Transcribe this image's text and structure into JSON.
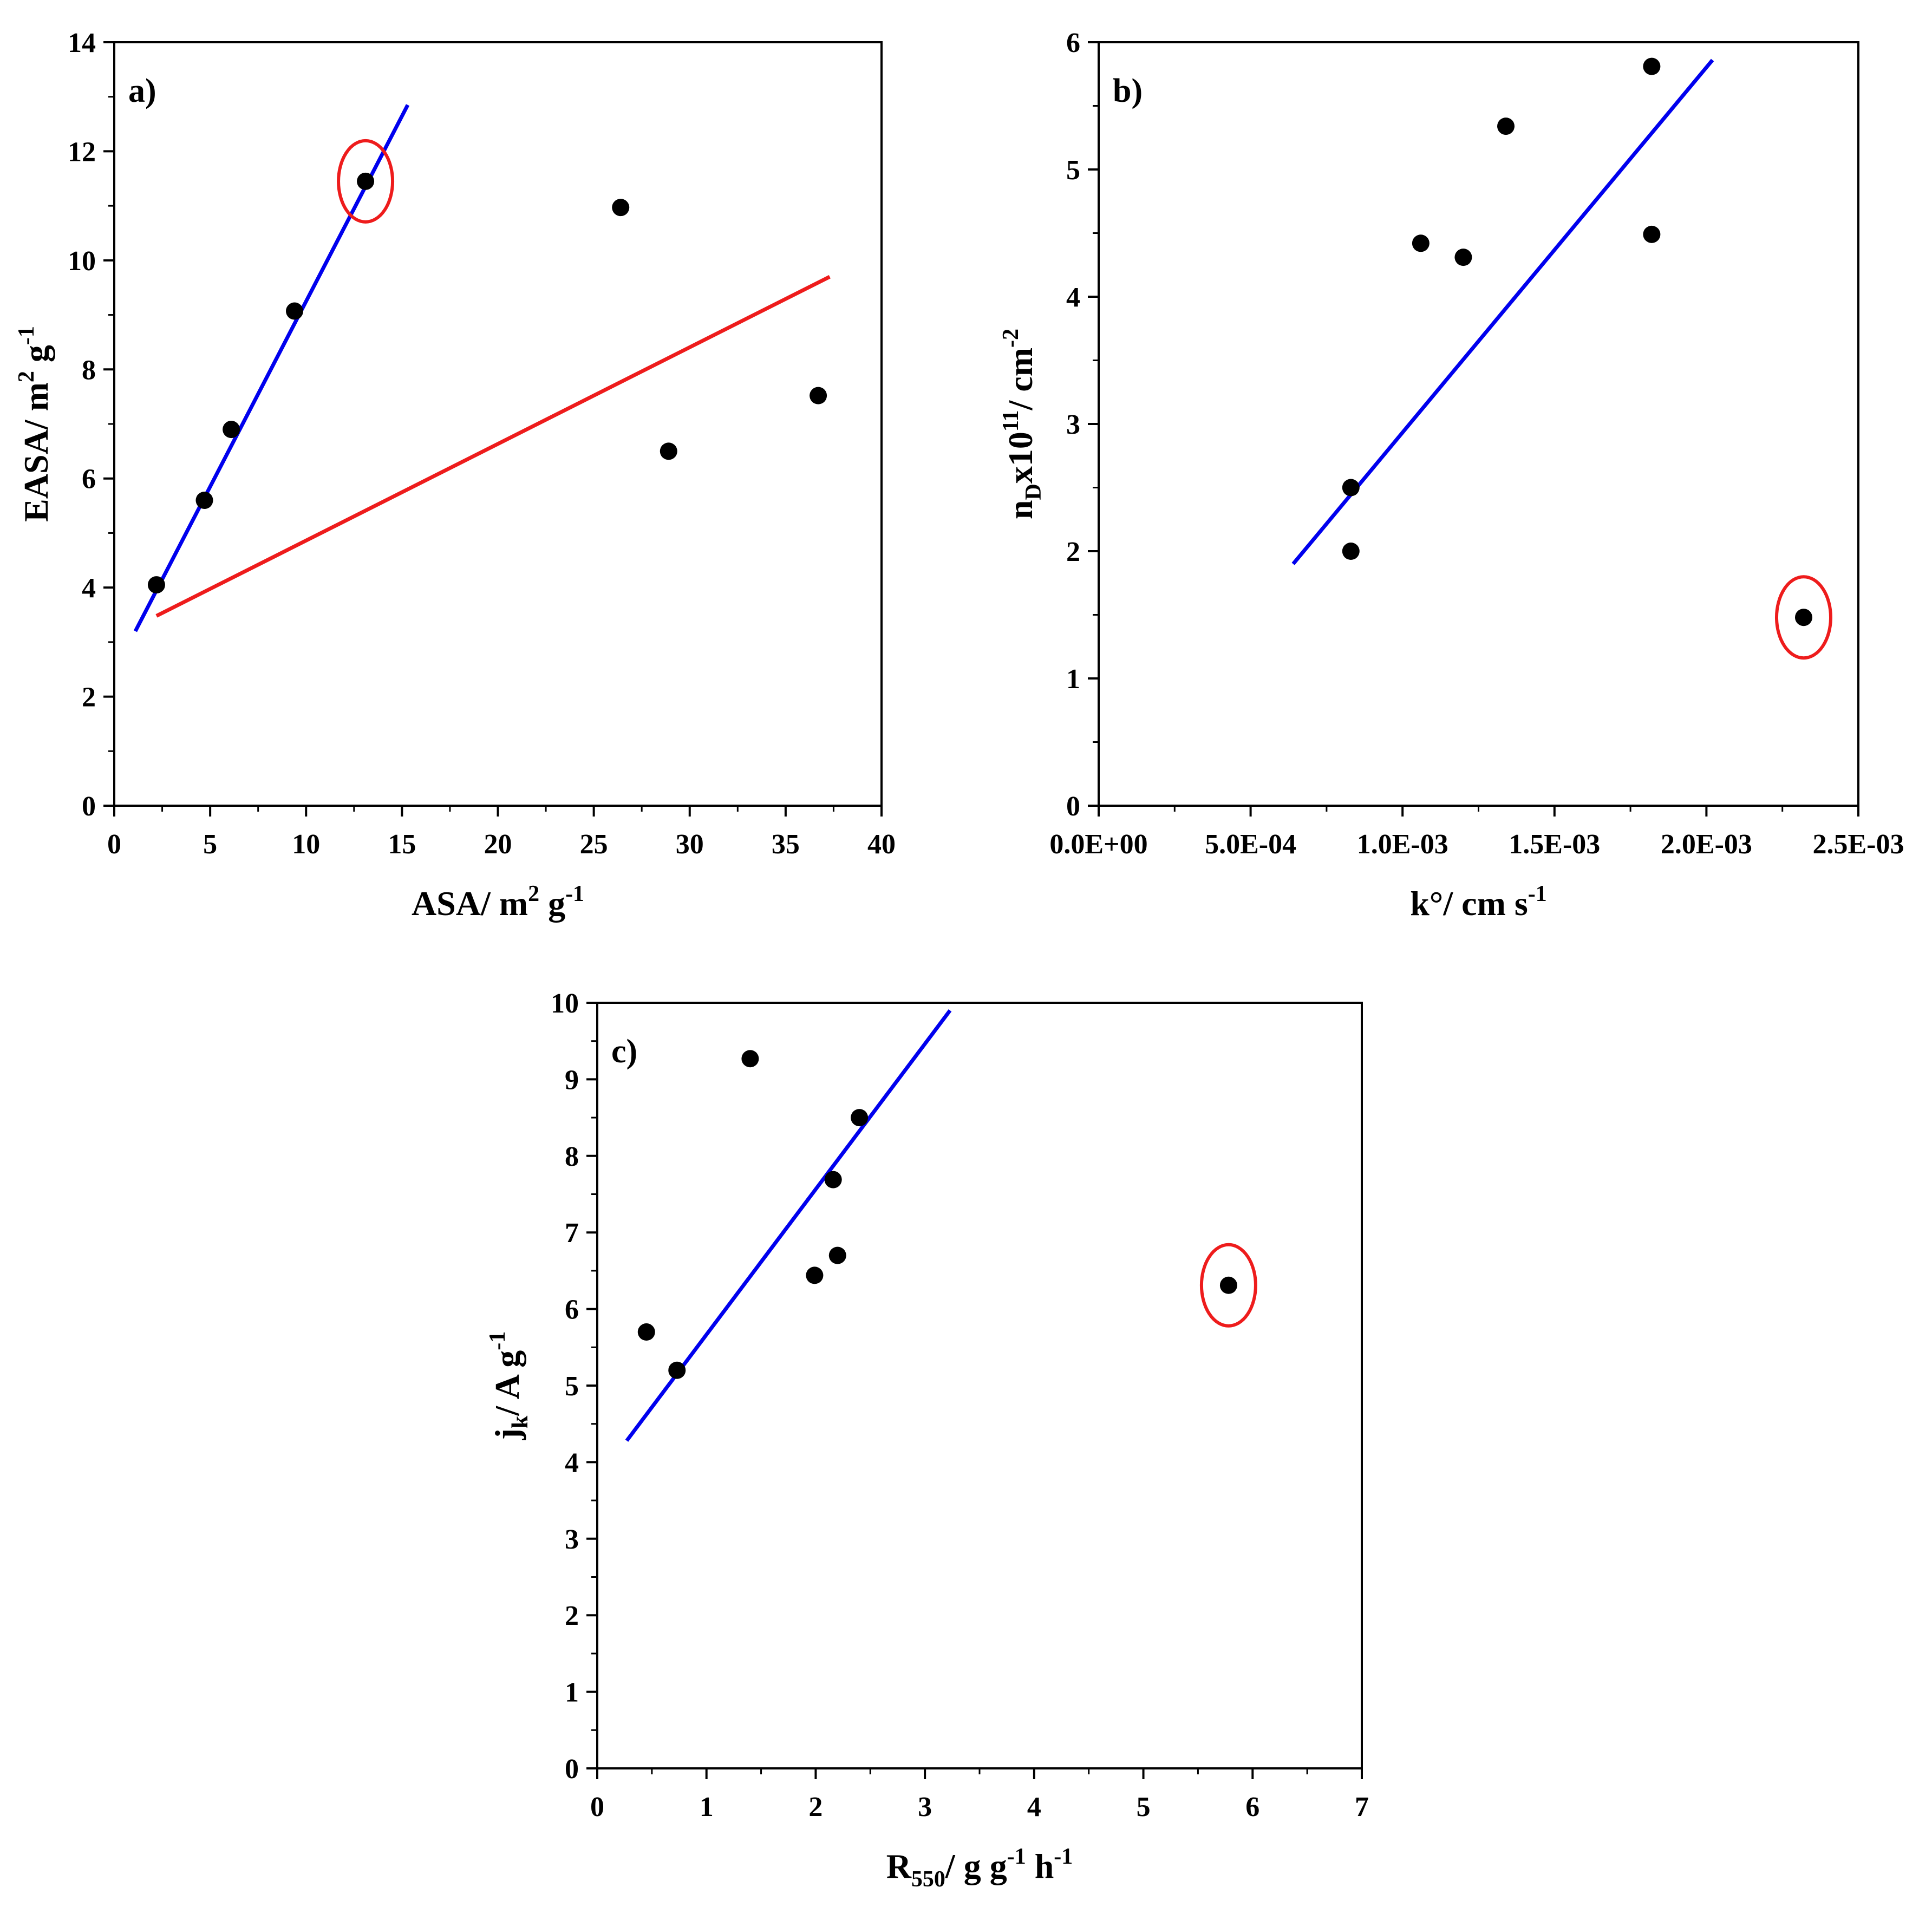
{
  "chart_data": [
    {
      "id": "a",
      "type": "scatter",
      "panel_label": "a)",
      "xlabel": {
        "main": "ASA/ m",
        "sup1": "2",
        "mid": " g",
        "sup2": "-1"
      },
      "ylabel": {
        "main": "EASA/ m",
        "sup1": "2",
        "mid": " g",
        "sup2": "-1"
      },
      "xlim": [
        0,
        40
      ],
      "ylim": [
        0,
        14
      ],
      "x_ticks": [
        0,
        5,
        10,
        15,
        20,
        25,
        30,
        35,
        40
      ],
      "x_tick_labels": [
        "0",
        "5",
        "10",
        "15",
        "20",
        "25",
        "30",
        "35",
        "40"
      ],
      "y_ticks": [
        0,
        2,
        4,
        6,
        8,
        10,
        12,
        14
      ],
      "y_tick_labels": [
        "0",
        "2",
        "4",
        "6",
        "8",
        "10",
        "12",
        "14"
      ],
      "points": [
        {
          "x": 2.2,
          "y": 4.05
        },
        {
          "x": 4.7,
          "y": 5.6
        },
        {
          "x": 6.1,
          "y": 6.9
        },
        {
          "x": 9.4,
          "y": 9.07
        },
        {
          "x": 13.1,
          "y": 11.45
        },
        {
          "x": 26.4,
          "y": 10.97
        },
        {
          "x": 28.9,
          "y": 6.5
        },
        {
          "x": 36.7,
          "y": 7.52
        }
      ],
      "fit_lines": [
        {
          "color": "#0000ee",
          "x": [
            1.1,
            15.3
          ],
          "y": [
            3.2,
            12.85
          ]
        },
        {
          "color": "#ee1c1c",
          "x": [
            2.2,
            37.3
          ],
          "y": [
            3.48,
            9.7
          ]
        }
      ],
      "highlight": {
        "x": 13.1,
        "y": 11.45,
        "color": "#ee1c1c"
      }
    },
    {
      "id": "b",
      "type": "scatter",
      "panel_label": "b)",
      "xlabel": {
        "main": "k°/ cm s",
        "sup": "-1"
      },
      "ylabel": {
        "main": "n",
        "sub": "D",
        "mid": "x10",
        "sup1": "11",
        "tail": "/ cm",
        "sup2": "-2"
      },
      "xlim": [
        0,
        0.0025
      ],
      "ylim": [
        0,
        6
      ],
      "x_ticks": [
        0,
        0.0005,
        0.001,
        0.0015,
        0.002,
        0.0025
      ],
      "x_tick_labels": [
        "0.0E+00",
        "5.0E-04",
        "1.0E-03",
        "1.5E-03",
        "2.0E-03",
        "2.5E-03"
      ],
      "y_ticks": [
        0,
        1,
        2,
        3,
        4,
        5,
        6
      ],
      "y_tick_labels": [
        "0",
        "1",
        "2",
        "3",
        "4",
        "5",
        "6"
      ],
      "points": [
        {
          "x": 0.00083,
          "y": 2.5
        },
        {
          "x": 0.00083,
          "y": 2.0
        },
        {
          "x": 0.00106,
          "y": 4.42
        },
        {
          "x": 0.0012,
          "y": 4.31
        },
        {
          "x": 0.00134,
          "y": 5.34
        },
        {
          "x": 0.00182,
          "y": 5.81
        },
        {
          "x": 0.00182,
          "y": 4.49
        },
        {
          "x": 0.00232,
          "y": 1.48
        }
      ],
      "fit_lines": [
        {
          "color": "#0000ee",
          "x": [
            0.00064,
            0.00202
          ],
          "y": [
            1.9,
            5.86
          ]
        }
      ],
      "highlight": {
        "x": 0.00232,
        "y": 1.48,
        "color": "#ee1c1c"
      }
    },
    {
      "id": "c",
      "type": "scatter",
      "panel_label": "c)",
      "xlabel": {
        "main": "R",
        "sub": "550",
        "tail": "/ g g",
        "sup1": "-1",
        "mid": " h",
        "sup2": "-1"
      },
      "ylabel": {
        "main": "j",
        "sub": "k",
        "tail": "/ A g",
        "sup": "-1"
      },
      "xlim": [
        0,
        7
      ],
      "ylim": [
        0,
        10
      ],
      "x_ticks": [
        0,
        1,
        2,
        3,
        4,
        5,
        6,
        7
      ],
      "x_tick_labels": [
        "0",
        "1",
        "2",
        "3",
        "4",
        "5",
        "6",
        "7"
      ],
      "y_ticks": [
        0,
        1,
        2,
        3,
        4,
        5,
        6,
        7,
        8,
        9,
        10
      ],
      "y_tick_labels": [
        "0",
        "1",
        "2",
        "3",
        "4",
        "5",
        "6",
        "7",
        "8",
        "9",
        "10"
      ],
      "points": [
        {
          "x": 0.45,
          "y": 5.7
        },
        {
          "x": 0.73,
          "y": 5.2
        },
        {
          "x": 1.4,
          "y": 9.27
        },
        {
          "x": 1.99,
          "y": 6.44
        },
        {
          "x": 2.16,
          "y": 7.69
        },
        {
          "x": 2.2,
          "y": 6.7
        },
        {
          "x": 2.4,
          "y": 8.5
        },
        {
          "x": 5.78,
          "y": 6.31
        }
      ],
      "fit_lines": [
        {
          "color": "#0000ee",
          "x": [
            0.27,
            3.23
          ],
          "y": [
            4.28,
            9.9
          ]
        }
      ],
      "highlight": {
        "x": 5.78,
        "y": 6.31,
        "color": "#ee1c1c"
      }
    }
  ]
}
